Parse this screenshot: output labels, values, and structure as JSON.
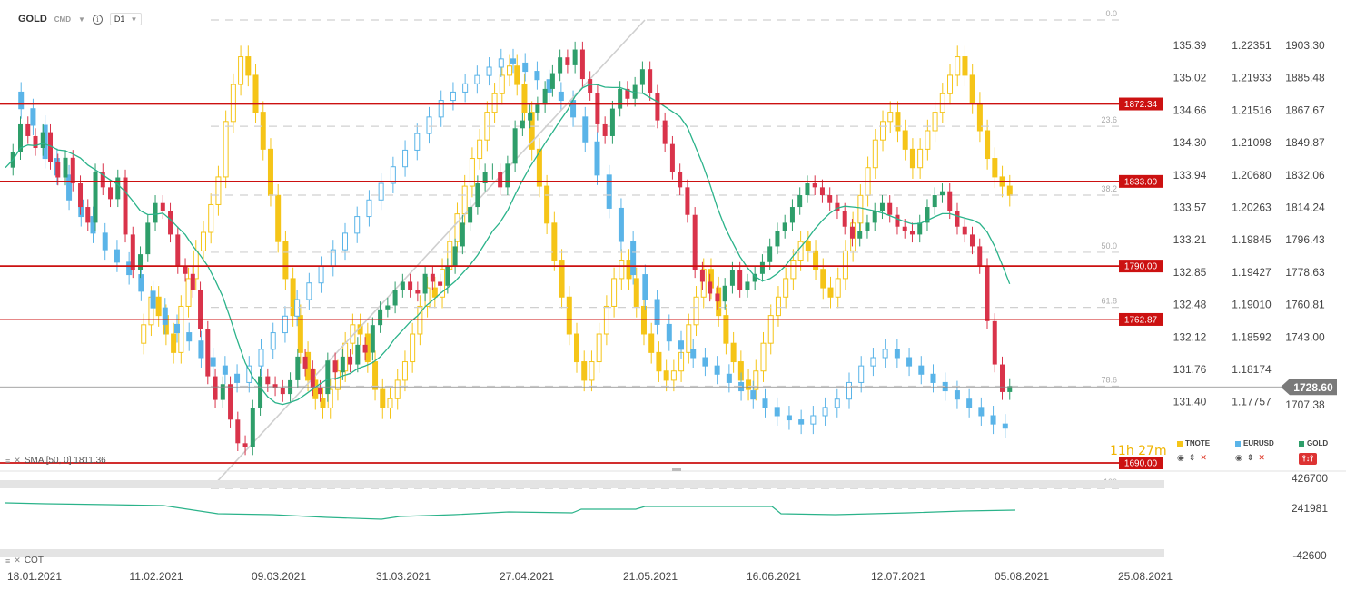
{
  "header": {
    "symbol": "GOLD",
    "subtype": "CMD",
    "interval": "D1"
  },
  "indicators": {
    "sma_label": "SMA [50, 0] 1811.36",
    "cot_label": "COT"
  },
  "legend": [
    {
      "name": "TNOTE",
      "color": "#f5c518"
    },
    {
      "name": "EURUSD",
      "color": "#5ab4e8"
    },
    {
      "name": "GOLD",
      "color": "#2e9e6a"
    }
  ],
  "countdown": "11h 27m",
  "chart_data": {
    "type": "candlestick",
    "x_ticks": [
      "18.01.2021",
      "11.02.2021",
      "09.03.2021",
      "31.03.2021",
      "27.04.2021",
      "21.05.2021",
      "16.06.2021",
      "12.07.2021",
      "05.08.2021",
      "25.08.2021"
    ],
    "gold_axis": {
      "ticks": [
        1903.3,
        1885.48,
        1867.67,
        1849.87,
        1832.06,
        1814.24,
        1796.43,
        1778.63,
        1760.81,
        1743.0,
        1707.38
      ],
      "current_price": "1728.60",
      "price_min": 1690,
      "price_max": 1915
    },
    "eurusd_axis": {
      "ticks": [
        "1.22351",
        "1.21933",
        "1.21516",
        "1.21098",
        "1.20680",
        "1.20263",
        "1.19845",
        "1.19427",
        "1.19010",
        "1.18592",
        "1.18174",
        "1.17757"
      ]
    },
    "tnote_axis": {
      "ticks": [
        "135.39",
        "135.02",
        "134.66",
        "134.30",
        "133.94",
        "133.57",
        "133.21",
        "132.85",
        "132.48",
        "132.12",
        "131.76",
        "131.40"
      ]
    },
    "horizontal_levels": [
      {
        "price": 1872.34,
        "label": "1872.34"
      },
      {
        "price": 1833.0,
        "label": "1833.00"
      },
      {
        "price": 1790.0,
        "label": "1790.00"
      },
      {
        "price": 1762.87,
        "label": "1762.87"
      },
      {
        "price": 1690.0,
        "label": "1690.00"
      }
    ],
    "fibonacci_levels": [
      {
        "label": "0.0",
        "price": 1915
      },
      {
        "label": "23.6",
        "price": 1861
      },
      {
        "label": "38.2",
        "price": 1826
      },
      {
        "label": "50.0",
        "price": 1797
      },
      {
        "label": "61.8",
        "price": 1769
      },
      {
        "label": "78.6",
        "price": 1729
      },
      {
        "label": "100",
        "price": 1677
      }
    ],
    "cot_axis": {
      "ticks": [
        "426700",
        "241981",
        "-42600"
      ]
    },
    "gold_closes": [
      1840,
      1848,
      1862,
      1856,
      1850,
      1858,
      1843,
      1835,
      1845,
      1832,
      1820,
      1812,
      1838,
      1830,
      1824,
      1835,
      1806,
      1788,
      1796,
      1812,
      1822,
      1818,
      1806,
      1790,
      1786,
      1778,
      1758,
      1734,
      1722,
      1730,
      1712,
      1700,
      1698,
      1718,
      1734,
      1730,
      1728,
      1725,
      1732,
      1744,
      1738,
      1728,
      1725,
      1742,
      1736,
      1744,
      1740,
      1750,
      1746,
      1760,
      1768,
      1770,
      1778,
      1782,
      1778,
      1776,
      1786,
      1782,
      1780,
      1790,
      1800,
      1812,
      1820,
      1832,
      1838,
      1838,
      1830,
      1842,
      1860,
      1864,
      1868,
      1872,
      1880,
      1888,
      1896,
      1892,
      1900,
      1885,
      1878,
      1862,
      1856,
      1870,
      1880,
      1875,
      1882,
      1890,
      1878,
      1864,
      1852,
      1838,
      1830,
      1816,
      1788,
      1782,
      1776,
      1772,
      1780,
      1788,
      1778,
      1782,
      1786,
      1792,
      1800,
      1808,
      1812,
      1820,
      1826,
      1832,
      1830,
      1826,
      1822,
      1818,
      1810,
      1804,
      1808,
      1812,
      1818,
      1822,
      1816,
      1810,
      1808,
      1806,
      1812,
      1820,
      1826,
      1828,
      1818,
      1810,
      1806,
      1800,
      1790,
      1762,
      1740,
      1726,
      1729
    ],
    "tnote_closes": [
      132.1,
      132.3,
      132.6,
      132.4,
      132.2,
      132.0,
      132.5,
      132.8,
      133.1,
      133.3,
      133.6,
      133.9,
      134.5,
      134.9,
      135.2,
      135.0,
      134.6,
      134.2,
      133.7,
      133.2,
      132.8,
      132.4,
      132.0,
      131.7,
      131.5,
      131.4,
      131.6,
      131.8,
      132.1,
      132.3,
      132.2,
      131.9,
      131.6,
      131.4,
      131.5,
      131.7,
      131.9,
      132.2,
      132.5,
      132.7,
      132.6,
      132.9,
      133.2,
      133.5,
      133.8,
      134.1,
      134.3,
      134.6,
      134.8,
      135.0,
      135.1,
      134.9,
      134.6,
      134.2,
      133.8,
      133.4,
      133.0,
      132.6,
      132.2,
      131.9,
      131.7,
      131.9,
      132.2,
      132.5,
      132.8,
      133.0,
      132.8,
      132.5,
      132.2,
      132.0,
      131.8,
      131.7,
      131.8,
      132.0,
      132.3,
      132.6,
      132.9,
      132.7,
      132.4,
      132.1,
      131.9,
      131.7,
      131.6,
      131.8,
      132.1,
      132.4,
      132.6,
      132.8,
      133.0,
      133.2,
      133.1,
      132.9,
      132.7,
      132.6,
      132.8,
      133.1,
      133.4,
      133.7,
      134.0,
      134.3,
      134.5,
      134.6,
      134.4,
      134.2,
      134.0,
      134.2,
      134.4,
      134.6,
      134.8,
      135.0,
      135.2,
      135.0,
      134.7,
      134.4,
      134.1,
      133.9,
      133.8,
      133.7
    ],
    "eurusd_closes": [
      1.218,
      1.216,
      1.214,
      1.21,
      1.208,
      1.205,
      1.203,
      1.201,
      1.199,
      1.1975,
      1.196,
      1.194,
      1.192,
      1.19,
      1.189,
      1.188,
      1.186,
      1.185,
      1.184,
      1.183,
      1.185,
      1.187,
      1.189,
      1.191,
      1.193,
      1.195,
      1.197,
      1.199,
      1.201,
      1.203,
      1.205,
      1.207,
      1.209,
      1.211,
      1.213,
      1.215,
      1.217,
      1.218,
      1.219,
      1.22,
      1.221,
      1.222,
      1.2215,
      1.2205,
      1.2195,
      1.218,
      1.217,
      1.215,
      1.212,
      1.208,
      1.204,
      1.2,
      1.196,
      1.193,
      1.19,
      1.188,
      1.187,
      1.186,
      1.185,
      1.184,
      1.183,
      1.182,
      1.181,
      1.18,
      1.179,
      1.1785,
      1.178,
      1.179,
      1.18,
      1.181,
      1.183,
      1.185,
      1.186,
      1.187,
      1.186,
      1.185,
      1.184,
      1.183,
      1.182,
      1.181,
      1.18,
      1.179,
      1.178,
      1.1775
    ]
  }
}
